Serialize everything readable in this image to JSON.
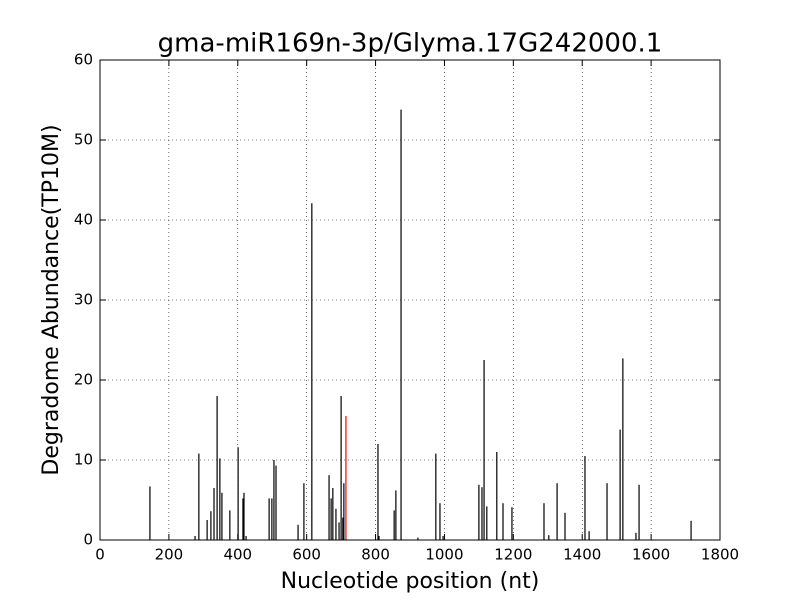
{
  "chart_data": {
    "type": "spike",
    "title": "gma-miR169n-3p/Glyma.17G242000.1",
    "x_label": "Nucleotide position (nt)",
    "y_label": "Degradome Abundance(TP10M)",
    "xlim": [
      0,
      1800
    ],
    "xticks": [
      0,
      200,
      400,
      600,
      800,
      1000,
      1200,
      1400,
      1600,
      1800
    ],
    "ylim": [
      0,
      60
    ],
    "yticks": [
      0,
      10,
      20,
      30,
      40,
      50,
      60
    ],
    "grid": true,
    "series": [
      {
        "color": "#000000",
        "x": [
          145,
          276,
          287,
          311,
          322,
          331,
          340,
          348,
          354,
          377,
          401,
          415,
          418,
          424,
          491,
          499,
          505,
          511,
          575,
          592,
          615,
          665,
          671,
          676,
          685,
          694,
          700,
          705,
          708,
          807,
          810,
          854,
          859,
          874,
          923,
          975,
          987,
          996,
          1100,
          1109,
          1115,
          1123,
          1152,
          1170,
          1196,
          1289,
          1303,
          1327,
          1350,
          1408,
          1420,
          1472,
          1510,
          1518,
          1556,
          1565,
          1716
        ],
        "values": [
          6.7,
          0.5,
          10.8,
          2.5,
          3.6,
          6.5,
          18,
          10.2,
          5.9,
          3.7,
          11.6,
          5.2,
          5.9,
          0.5,
          5.2,
          5.2,
          10,
          9.3,
          1.9,
          7.1,
          42.1,
          8.1,
          5.2,
          6.5,
          3.9,
          2.2,
          18,
          2.8,
          7.1,
          12,
          0.5,
          3.7,
          6.2,
          53.8,
          0.3,
          10.8,
          4.6,
          0.5,
          6.9,
          6.6,
          22.5,
          4.2,
          11,
          4.6,
          4.1,
          4.6,
          0.6,
          7.1,
          3.4,
          10.5,
          1.1,
          7.1,
          13.8,
          22.7,
          0.9,
          6.9,
          2.4
        ]
      },
      {
        "color": "#ff0000",
        "x": [
          714
        ],
        "values": [
          15.5
        ]
      }
    ]
  }
}
